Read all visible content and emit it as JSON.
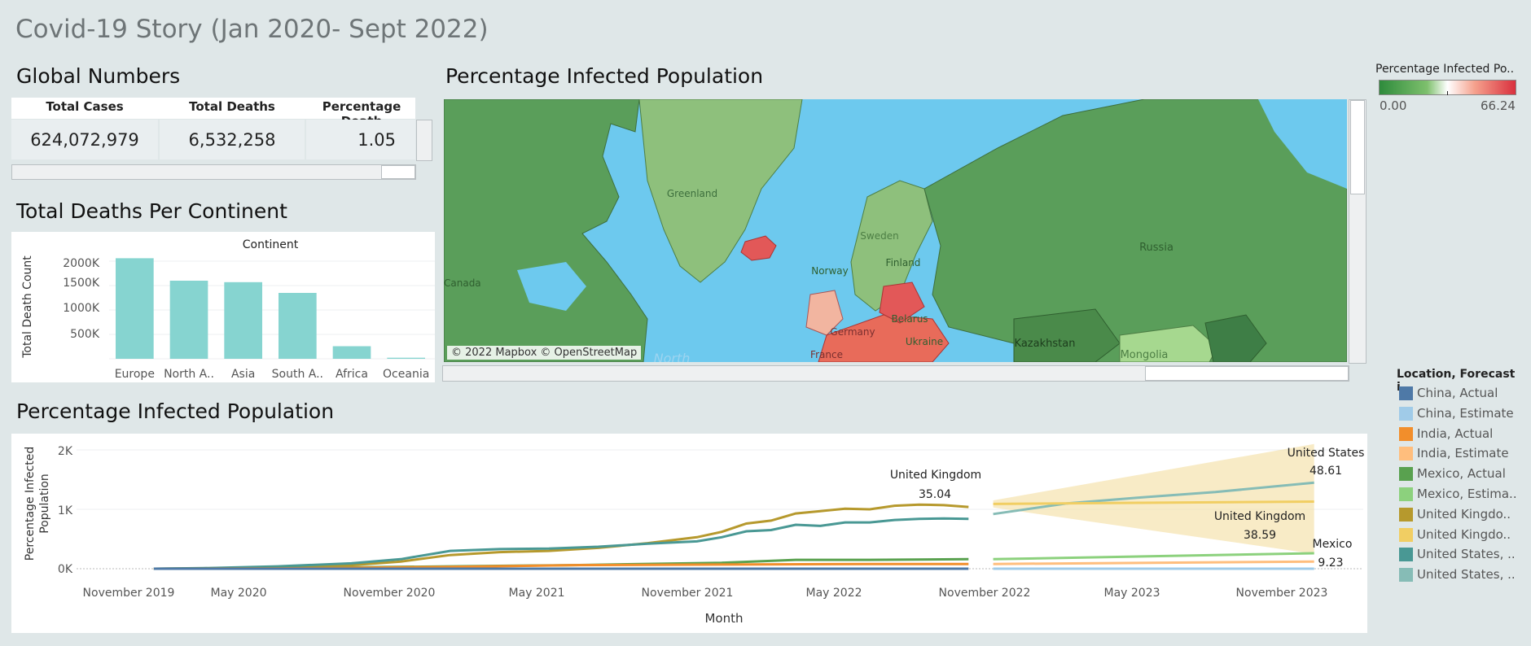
{
  "dashboard": {
    "title": "Covid-19 Story (Jan 2020- Sept 2022)"
  },
  "global_numbers": {
    "title": "Global Numbers",
    "headers": [
      "Total Cases",
      "Total Deaths",
      "Percentage Death"
    ],
    "values": [
      "624,072,979",
      "6,532,258",
      "1.05"
    ]
  },
  "deaths_per_continent": {
    "title": "Total Deaths Per Continent",
    "column_header": "Continent",
    "y_axis_label": "Total Death Count",
    "y_ticks": [
      "2000K",
      "1500K",
      "1000K",
      "500K"
    ]
  },
  "map": {
    "title": "Percentage Infected Population",
    "attribution": "© 2022 Mapbox © OpenStreetMap",
    "labels": [
      "Greenland",
      "Canada",
      "Sweden",
      "Finland",
      "Norway",
      "Russia",
      "Belarus",
      "Germany",
      "Ukraine",
      "France",
      "Kazakhstan",
      "Mongolia",
      "North"
    ],
    "color_legend": {
      "title": "Percentage Infected Po..",
      "min": "0.00",
      "max": "66.24",
      "low_color": "#2e8b3c",
      "high_color": "#d9303e"
    }
  },
  "line_chart": {
    "title": "Percentage Infected Population",
    "y_axis_label": [
      "Percentage Infected",
      "Population"
    ],
    "x_axis_label": "Month",
    "y_ticks": [
      "2K",
      "1K",
      "0K"
    ],
    "x_ticks": [
      "November 2019",
      "May 2020",
      "November 2020",
      "May 2021",
      "November 2021",
      "May 2022",
      "November 2022",
      "May 2023",
      "November 2023"
    ],
    "annotations": [
      {
        "label": "United Kingdom",
        "value": "35.04"
      },
      {
        "label": "United States",
        "value": "48.61"
      },
      {
        "label": "United Kingdom",
        "value": "38.59"
      },
      {
        "label": "Mexico",
        "value": "9.23"
      }
    ]
  },
  "series_legend": {
    "title": "Location, Forecast i..",
    "items": [
      {
        "label": "China, Actual",
        "color": "#4e79a7"
      },
      {
        "label": "China, Estimate",
        "color": "#a0cbe8"
      },
      {
        "label": "India, Actual",
        "color": "#f28e2b"
      },
      {
        "label": "India, Estimate",
        "color": "#ffbe7d"
      },
      {
        "label": "Mexico, Actual",
        "color": "#59a14f"
      },
      {
        "label": "Mexico, Estima..",
        "color": "#8cd17d"
      },
      {
        "label": "United Kingdo..",
        "color": "#b6992d"
      },
      {
        "label": "United Kingdo..",
        "color": "#f1ce63"
      },
      {
        "label": "United States, ..",
        "color": "#499894"
      },
      {
        "label": "United States, ..",
        "color": "#86bcb6"
      }
    ]
  },
  "chart_data": [
    {
      "type": "bar",
      "title": "Total Deaths Per Continent",
      "xlabel": "Continent",
      "ylabel": "Total Death Count",
      "categories": [
        "Europe",
        "North A..",
        "Asia",
        "South A..",
        "Africa",
        "Oceania"
      ],
      "values": [
        2060000,
        1600000,
        1570000,
        1350000,
        258000,
        22000
      ],
      "ylim": [
        0,
        2100000
      ],
      "color": "#86d4d0"
    },
    {
      "type": "line",
      "title": "Percentage Infected Population",
      "xlabel": "Month",
      "ylabel": "Percentage Infected Population",
      "x_range": [
        "2019-10",
        "2024-01"
      ],
      "ylim": [
        -200,
        2000
      ],
      "series": [
        {
          "name": "United Kingdom, Actual",
          "color": "#b6992d",
          "x": [
            "2020-01",
            "2020-03",
            "2020-06",
            "2020-09",
            "2020-11",
            "2021-01",
            "2021-03",
            "2021-05",
            "2021-07",
            "2021-09",
            "2021-11",
            "2021-12",
            "2022-01",
            "2022-02",
            "2022-03",
            "2022-04",
            "2022-05",
            "2022-06",
            "2022-07",
            "2022-08",
            "2022-09",
            "2022-10"
          ],
          "y": [
            0,
            5,
            30,
            60,
            120,
            230,
            280,
            300,
            350,
            430,
            530,
            620,
            760,
            810,
            930,
            970,
            1010,
            1000,
            1060,
            1080,
            1070,
            1040
          ]
        },
        {
          "name": "United States, Actual",
          "color": "#499894",
          "x": [
            "2020-01",
            "2020-03",
            "2020-06",
            "2020-09",
            "2020-11",
            "2021-01",
            "2021-03",
            "2021-05",
            "2021-07",
            "2021-09",
            "2021-11",
            "2021-12",
            "2022-01",
            "2022-02",
            "2022-03",
            "2022-04",
            "2022-05",
            "2022-06",
            "2022-07",
            "2022-08",
            "2022-09",
            "2022-10"
          ],
          "y": [
            0,
            10,
            40,
            90,
            160,
            300,
            330,
            340,
            370,
            420,
            460,
            530,
            630,
            650,
            740,
            720,
            780,
            780,
            820,
            840,
            845,
            840
          ]
        },
        {
          "name": "Mexico, Actual",
          "color": "#59a14f",
          "x": [
            "2020-01",
            "2020-06",
            "2021-01",
            "2021-06",
            "2021-12",
            "2022-03",
            "2022-06",
            "2022-10"
          ],
          "y": [
            0,
            10,
            40,
            60,
            100,
            150,
            150,
            160
          ]
        },
        {
          "name": "India, Actual",
          "color": "#f28e2b",
          "x": [
            "2020-01",
            "2020-06",
            "2021-01",
            "2021-06",
            "2021-12",
            "2022-06",
            "2022-10"
          ],
          "y": [
            0,
            5,
            30,
            60,
            70,
            80,
            80
          ]
        },
        {
          "name": "China, Actual",
          "color": "#4e79a7",
          "x": [
            "2020-01",
            "2022-10"
          ],
          "y": [
            0,
            0
          ]
        },
        {
          "name": "United States, Estimate",
          "color": "#86bcb6",
          "x": [
            "2022-11",
            "2023-02",
            "2023-05",
            "2023-08",
            "2023-12"
          ],
          "y": [
            920,
            1100,
            1200,
            1290,
            1450
          ]
        },
        {
          "name": "United Kingdom, Estimate",
          "color": "#f1ce63",
          "x": [
            "2022-11",
            "2023-05",
            "2023-12"
          ],
          "y": [
            1090,
            1110,
            1130
          ]
        },
        {
          "name": "Mexico, Estimate",
          "color": "#8cd17d",
          "x": [
            "2022-11",
            "2023-12"
          ],
          "y": [
            160,
            260
          ]
        },
        {
          "name": "India, Estimate",
          "color": "#ffbe7d",
          "x": [
            "2022-11",
            "2023-12"
          ],
          "y": [
            80,
            120
          ]
        },
        {
          "name": "China, Estimate",
          "color": "#a0cbe8",
          "x": [
            "2022-11",
            "2023-12"
          ],
          "y": [
            0,
            0
          ]
        }
      ],
      "forecast_band": {
        "x": [
          "2022-11",
          "2023-12"
        ],
        "upper": [
          1150,
          2100
        ],
        "lower": [
          1030,
          250
        ]
      }
    }
  ]
}
